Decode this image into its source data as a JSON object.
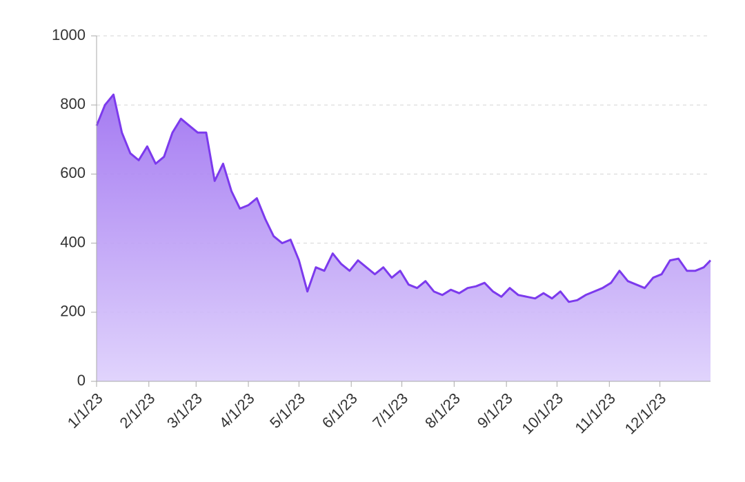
{
  "chart_data": {
    "type": "area",
    "x": [
      "1/1/23",
      "1/6/23",
      "1/11/23",
      "1/16/23",
      "1/21/23",
      "1/26/23",
      "1/31/23",
      "2/5/23",
      "2/10/23",
      "2/15/23",
      "2/20/23",
      "2/25/23",
      "3/2/23",
      "3/7/23",
      "3/12/23",
      "3/17/23",
      "3/22/23",
      "3/27/23",
      "4/1/23",
      "4/6/23",
      "4/11/23",
      "4/16/23",
      "4/21/23",
      "4/26/23",
      "5/1/23",
      "5/6/23",
      "5/11/23",
      "5/16/23",
      "5/21/23",
      "5/26/23",
      "5/31/23",
      "6/5/23",
      "6/10/23",
      "6/15/23",
      "6/20/23",
      "6/25/23",
      "6/30/23",
      "7/5/23",
      "7/10/23",
      "7/15/23",
      "7/20/23",
      "7/25/23",
      "7/30/23",
      "8/4/23",
      "8/9/23",
      "8/14/23",
      "8/19/23",
      "8/24/23",
      "8/29/23",
      "9/3/23",
      "9/8/23",
      "9/13/23",
      "9/18/23",
      "9/23/23",
      "9/28/23",
      "10/3/23",
      "10/8/23",
      "10/13/23",
      "10/18/23",
      "10/23/23",
      "10/28/23",
      "11/2/23",
      "11/7/23",
      "11/12/23",
      "11/17/23",
      "11/22/23",
      "11/27/23",
      "12/2/23",
      "12/7/23",
      "12/12/23",
      "12/17/23",
      "12/22/23",
      "12/27/23",
      "12/31/23"
    ],
    "series": [
      {
        "color": "#7c3aed",
        "values": [
          740,
          800,
          830,
          720,
          660,
          640,
          680,
          630,
          650,
          720,
          760,
          740,
          720,
          720,
          580,
          630,
          550,
          500,
          510,
          530,
          470,
          420,
          400,
          410,
          350,
          260,
          330,
          320,
          370,
          340,
          320,
          350,
          330,
          310,
          330,
          300,
          320,
          280,
          270,
          290,
          260,
          250,
          265,
          255,
          270,
          275,
          285,
          260,
          245,
          270,
          250,
          245,
          240,
          255,
          240,
          260,
          230,
          235,
          250,
          260,
          270,
          285,
          320,
          290,
          280,
          270,
          300,
          310,
          350,
          355,
          320,
          320,
          330,
          350
        ]
      }
    ],
    "xlim": [
      "1/1/23",
      "12/31/23"
    ],
    "xticks": [
      "1/1/23",
      "2/1/23",
      "3/1/23",
      "4/1/23",
      "5/1/23",
      "6/1/23",
      "7/1/23",
      "8/1/23",
      "9/1/23",
      "10/1/23",
      "11/1/23",
      "12/1/23"
    ],
    "ylim": [
      0,
      1000
    ],
    "yticks": [
      0,
      200,
      400,
      600,
      800,
      1000
    ],
    "grid": true
  }
}
